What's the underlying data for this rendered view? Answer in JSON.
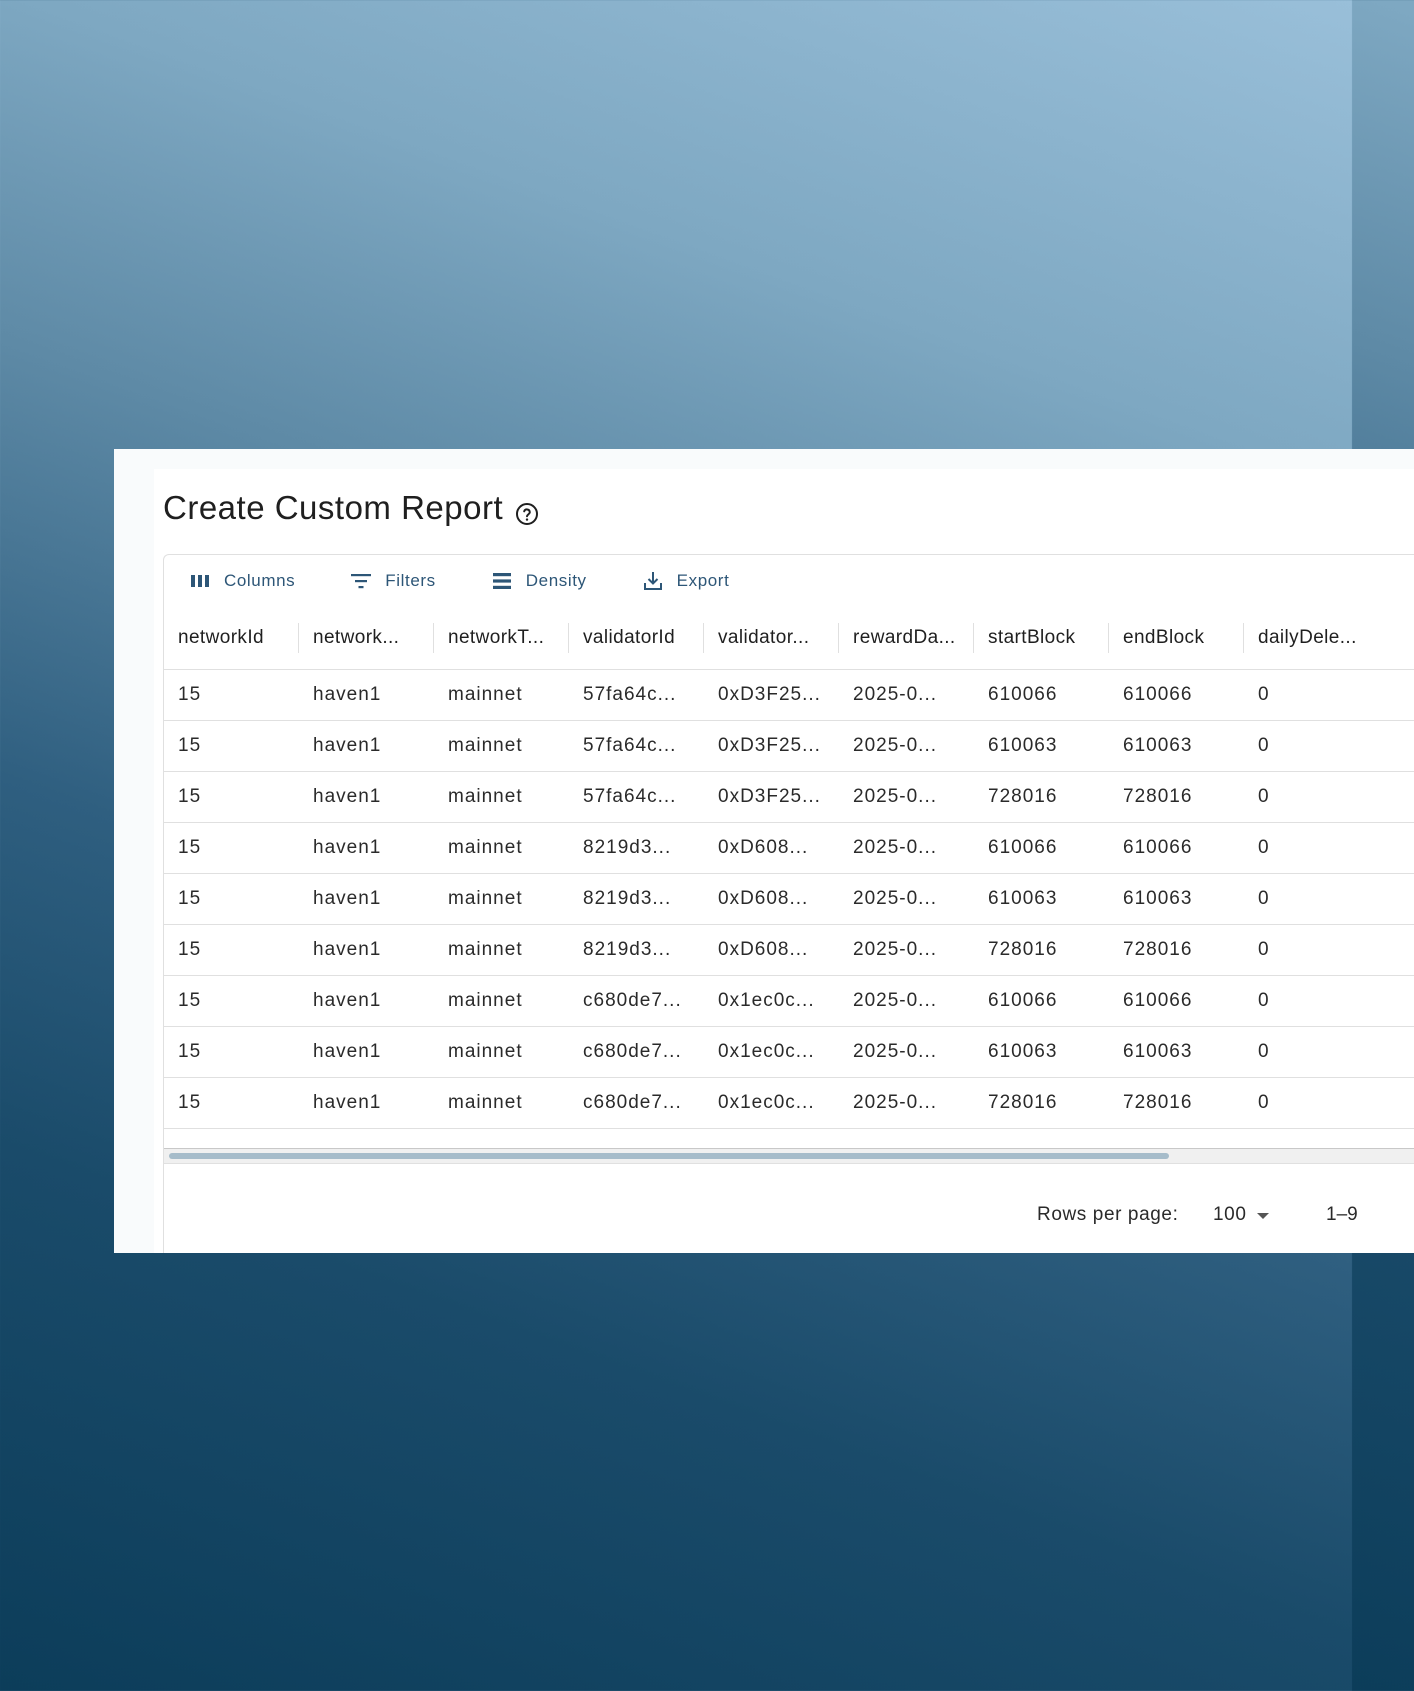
{
  "title": "Create Custom Report",
  "help_icon": "help-circle-icon",
  "toolbar": {
    "columns_label": "Columns",
    "filters_label": "Filters",
    "density_label": "Density",
    "export_label": "Export"
  },
  "columns": [
    "networkId",
    "network...",
    "networkT...",
    "validatorId",
    "validator...",
    "rewardDa...",
    "startBlock",
    "endBlock",
    "dailyDele..."
  ],
  "rows": [
    [
      "15",
      "haven1",
      "mainnet",
      "57fa64c...",
      "0xD3F25...",
      "2025-0...",
      "610066",
      "610066",
      "0"
    ],
    [
      "15",
      "haven1",
      "mainnet",
      "57fa64c...",
      "0xD3F25...",
      "2025-0...",
      "610063",
      "610063",
      "0"
    ],
    [
      "15",
      "haven1",
      "mainnet",
      "57fa64c...",
      "0xD3F25...",
      "2025-0...",
      "728016",
      "728016",
      "0"
    ],
    [
      "15",
      "haven1",
      "mainnet",
      "8219d3...",
      "0xD608...",
      "2025-0...",
      "610066",
      "610066",
      "0"
    ],
    [
      "15",
      "haven1",
      "mainnet",
      "8219d3...",
      "0xD608...",
      "2025-0...",
      "610063",
      "610063",
      "0"
    ],
    [
      "15",
      "haven1",
      "mainnet",
      "8219d3...",
      "0xD608...",
      "2025-0...",
      "728016",
      "728016",
      "0"
    ],
    [
      "15",
      "haven1",
      "mainnet",
      "c680de7...",
      "0x1ec0c...",
      "2025-0...",
      "610066",
      "610066",
      "0"
    ],
    [
      "15",
      "haven1",
      "mainnet",
      "c680de7...",
      "0x1ec0c...",
      "2025-0...",
      "610063",
      "610063",
      "0"
    ],
    [
      "15",
      "haven1",
      "mainnet",
      "c680de7...",
      "0x1ec0c...",
      "2025-0...",
      "728016",
      "728016",
      "0"
    ]
  ],
  "footer": {
    "rows_per_page_label": "Rows per page:",
    "rows_per_page_value": "100",
    "page_range": "1–9"
  },
  "colors": {
    "accent": "#2d5677",
    "border": "#e0e0e0",
    "scroll_thumb": "#a6bcca"
  }
}
